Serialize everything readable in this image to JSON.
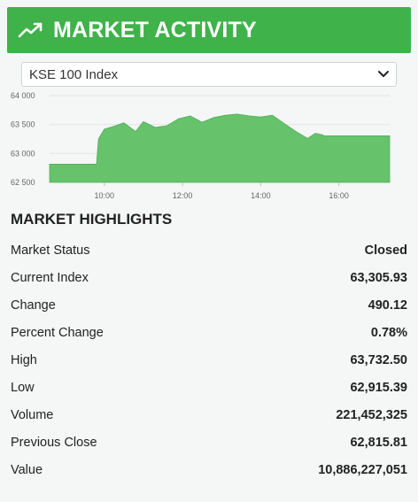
{
  "header": {
    "title": "MARKET ACTIVITY",
    "icon": "trending-up-icon",
    "accent": "#3fb24a"
  },
  "index_select": {
    "selected": "KSE 100 Index"
  },
  "chart_data": {
    "type": "area",
    "color": "#66c26b",
    "x_ticks": [
      "10:00",
      "12:00",
      "14:00",
      "16:00"
    ],
    "y_ticks": [
      "64 000",
      "63 500",
      "63 000",
      "62 500"
    ],
    "ylim": [
      62500,
      64000
    ],
    "xlim": [
      8.6,
      17.3
    ],
    "grid": true,
    "x": [
      8.6,
      9.8,
      9.85,
      10.0,
      10.2,
      10.5,
      10.8,
      11.0,
      11.3,
      11.6,
      11.9,
      12.2,
      12.5,
      12.8,
      13.1,
      13.4,
      13.7,
      14.0,
      14.3,
      14.6,
      14.9,
      15.2,
      15.4,
      15.6,
      15.6,
      17.3
    ],
    "y": [
      62815,
      62815,
      63250,
      63420,
      63460,
      63530,
      63380,
      63550,
      63450,
      63480,
      63600,
      63650,
      63540,
      63620,
      63660,
      63680,
      63650,
      63630,
      63660,
      63520,
      63380,
      63260,
      63350,
      63320,
      63305,
      63305
    ]
  },
  "highlights": {
    "title": "MARKET HIGHLIGHTS",
    "rows": [
      {
        "label": "Market Status",
        "value": "Closed"
      },
      {
        "label": "Current Index",
        "value": "63,305.93"
      },
      {
        "label": "Change",
        "value": "490.12"
      },
      {
        "label": "Percent Change",
        "value": "0.78%"
      },
      {
        "label": "High",
        "value": "63,732.50"
      },
      {
        "label": "Low",
        "value": "62,915.39"
      },
      {
        "label": "Volume",
        "value": "221,452,325"
      },
      {
        "label": "Previous Close",
        "value": "62,815.81"
      },
      {
        "label": "Value",
        "value": "10,886,227,051"
      }
    ]
  }
}
